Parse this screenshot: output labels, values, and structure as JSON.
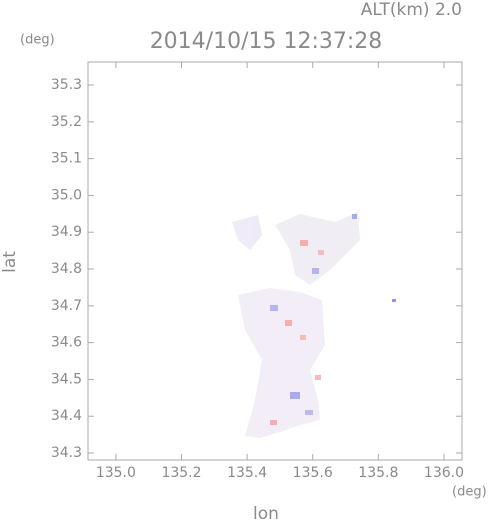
{
  "chart_data": {
    "type": "scatter",
    "title": "2014/10/15 12:37:28",
    "annotation": "ALT(km) 2.0",
    "xlabel": "lon",
    "ylabel": "lat",
    "xunit": "(deg)",
    "yunit": "(deg)",
    "xlim": [
      134.915,
      136.055
    ],
    "ylim": [
      34.281,
      35.3625
    ],
    "xticks": [
      {
        "value": 135.0,
        "label": "135.0"
      },
      135.2,
      135.4,
      135.6,
      135.8,
      {
        "value": 136.0,
        "label": "136.0"
      }
    ],
    "yticks": [
      34.3,
      34.4,
      34.5,
      34.6,
      34.7,
      34.8,
      34.9,
      {
        "value": 35.0,
        "label": "35.0"
      },
      35.1,
      35.2,
      35.3
    ],
    "grid": false
  }
}
